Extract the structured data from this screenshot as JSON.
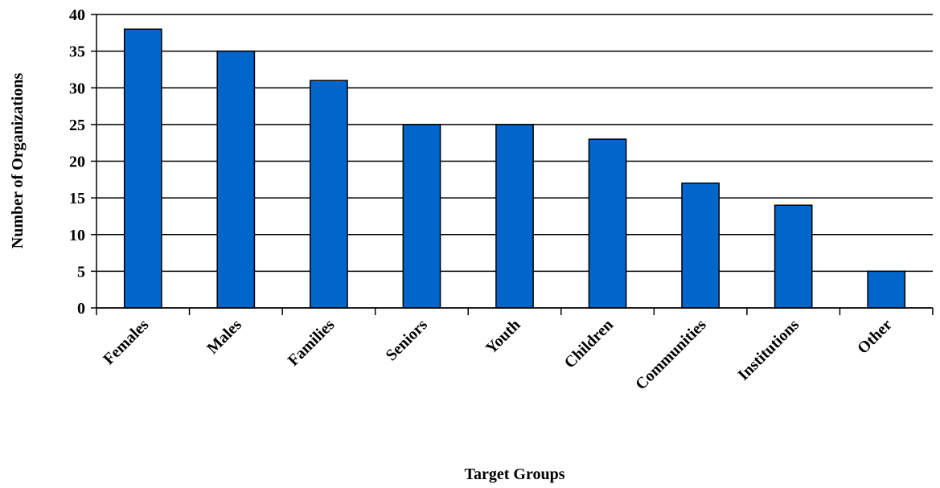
{
  "chart_data": {
    "type": "bar",
    "x_label": "Target Groups",
    "y_label": "Number of Organizations",
    "categories": [
      "Females",
      "Males",
      "Families",
      "Seniors",
      "Youth",
      "Children",
      "Communities",
      "Institutions",
      "Other"
    ],
    "values": [
      38,
      35,
      31,
      25,
      25,
      23,
      17,
      14,
      5
    ],
    "color": "#0066cc",
    "ylim": [
      0,
      40
    ],
    "yticks": [
      0,
      5,
      10,
      15,
      20,
      25,
      30,
      35,
      40
    ],
    "grid": true
  }
}
